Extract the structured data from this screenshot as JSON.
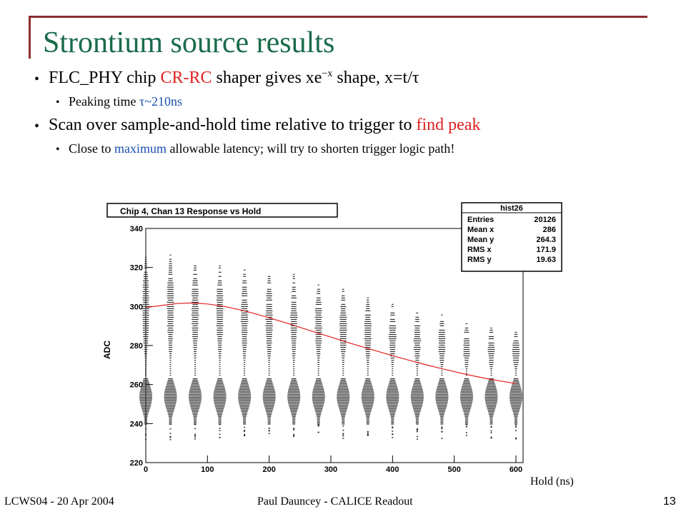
{
  "slide": {
    "title": "Strontium source results",
    "bullets": [
      {
        "pre": "FLC_PHY chip ",
        "red": "CR-RC",
        "mid": " shaper gives xe",
        "sup": "−x",
        "post": " shape, x=t/τ"
      },
      {
        "pre": "Peaking time ",
        "blue": "τ~210ns"
      },
      {
        "pre": "Scan over sample-and-hold time relative to trigger to ",
        "red": "find peak"
      },
      {
        "pre": "Close to ",
        "blue": "maximum",
        "post": " allowable latency; will try to shorten trigger logic path!"
      }
    ],
    "footer": {
      "left": "LCWS04 - 20 Apr 2004",
      "center": "Paul Dauncey - CALICE Readout",
      "page": "13"
    },
    "hold_label": "Hold (ns)"
  },
  "chart_data": {
    "type": "scatter",
    "title": "Chip 4, Chan 13 Response vs Hold",
    "xlabel": "",
    "ylabel": "ADC",
    "xlim": [
      0,
      600
    ],
    "ylim": [
      220,
      340
    ],
    "xticks": [
      0,
      100,
      200,
      300,
      400,
      500,
      600
    ],
    "yticks": [
      220,
      240,
      260,
      280,
      300,
      320,
      340
    ],
    "hold_values": [
      0,
      40,
      80,
      120,
      160,
      200,
      240,
      280,
      320,
      360,
      400,
      440,
      480,
      520,
      560,
      600
    ],
    "pedestal_range": [
      240,
      264
    ],
    "signal_max": [
      326,
      327,
      324,
      322,
      320,
      318,
      317,
      312,
      310,
      305,
      302,
      298,
      296,
      292,
      290,
      288
    ],
    "peak_fit": {
      "color": "#e02020",
      "x": [
        0,
        25,
        50,
        75,
        100,
        125,
        150,
        175,
        200,
        225,
        250,
        275,
        300,
        325,
        350,
        375,
        400,
        425,
        450,
        475,
        500,
        525,
        550,
        575,
        600
      ],
      "y": [
        299.5,
        300.5,
        301.5,
        301.8,
        301.3,
        300.2,
        298.5,
        296.5,
        294.2,
        291.8,
        289.3,
        286.8,
        284.3,
        281.8,
        279.4,
        277.1,
        274.8,
        272.6,
        270.5,
        268.5,
        266.6,
        264.8,
        263.2,
        261.8,
        260.5
      ]
    },
    "stats": {
      "name": "hist26",
      "rows": [
        {
          "label": "Entries",
          "value": "20126"
        },
        {
          "label": "Mean x",
          "value": "286"
        },
        {
          "label": "Mean y",
          "value": "264.3"
        },
        {
          "label": "RMS x",
          "value": "171.9"
        },
        {
          "label": "RMS y",
          "value": "19.63"
        }
      ]
    }
  }
}
